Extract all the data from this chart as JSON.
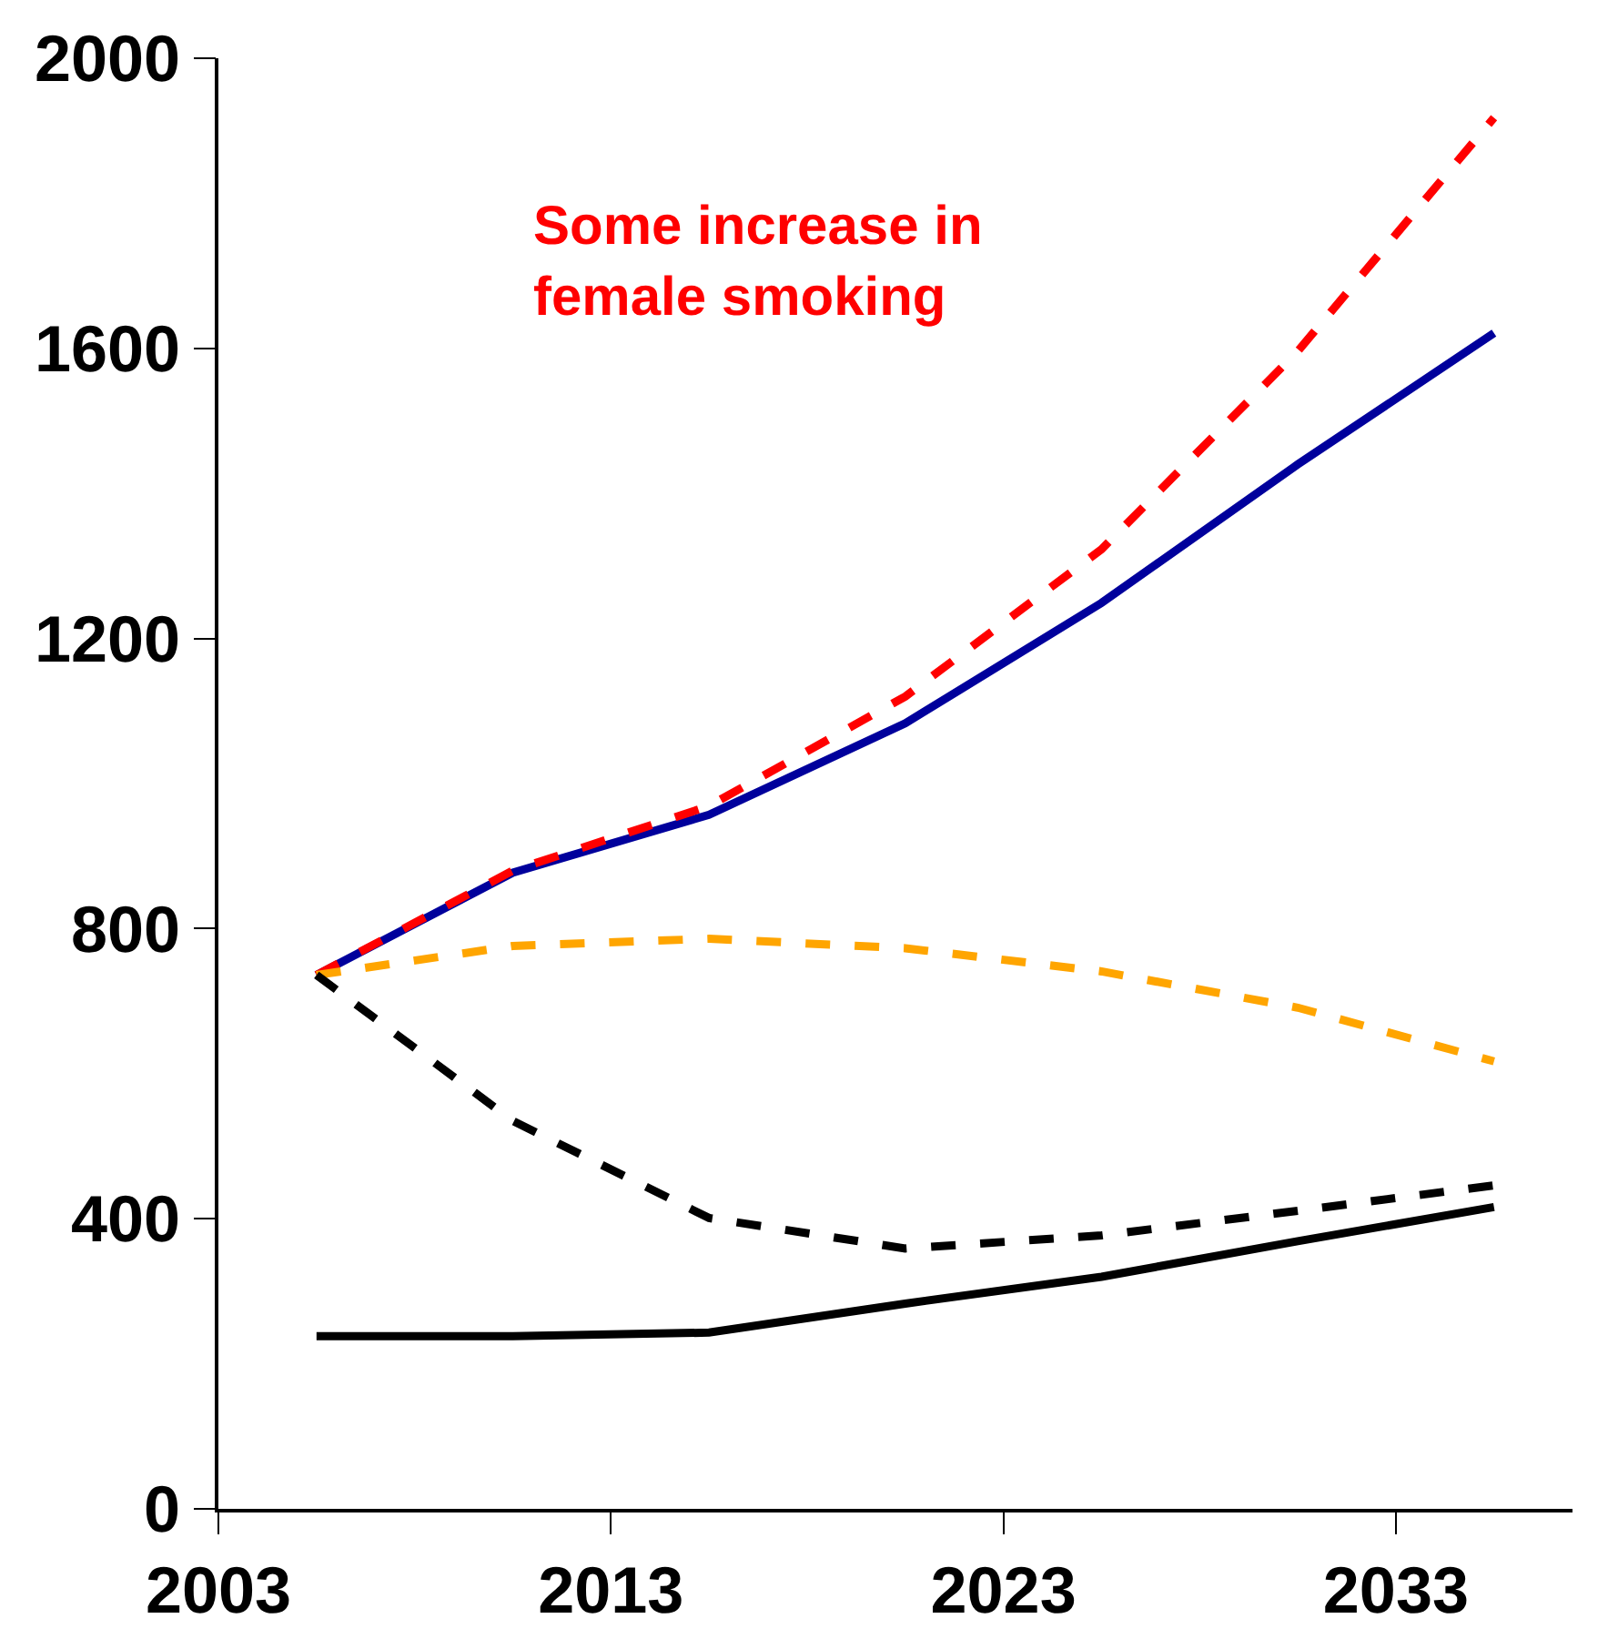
{
  "chart_data": {
    "type": "line",
    "x": [
      2005.5,
      2010.5,
      2015.5,
      2020.5,
      2025.5,
      2030.5,
      2035.5
    ],
    "series": [
      {
        "color": "#00009c",
        "line_style": "solid",
        "values": [
          736,
          877,
          957,
          1083,
          1249,
          1440,
          1621
        ]
      },
      {
        "color": "#ff0000",
        "line_style": "dashed",
        "values": [
          736,
          880,
          969,
          1120,
          1323,
          1596,
          1918
        ]
      },
      {
        "color": "#ffa500",
        "line_style": "dashed",
        "values": [
          736,
          776,
          786,
          773,
          741,
          691,
          617
        ]
      },
      {
        "color": "#000000",
        "line_style": "dashed",
        "values": [
          736,
          535,
          401,
          359,
          377,
          411,
          446
        ]
      },
      {
        "color": "#000000",
        "line_style": "solid",
        "values": [
          238,
          238,
          243,
          283,
          320,
          369,
          416
        ]
      }
    ],
    "annotations": [
      "Some increase in\nfemale smoking"
    ],
    "xlim": [
      2003,
      2037.5
    ],
    "xticks": [
      2003,
      2013,
      2023,
      2033
    ],
    "ylim": [
      0,
      2000
    ],
    "yticks": [
      0,
      400,
      800,
      1200,
      1600,
      2000
    ],
    "marker": "none"
  }
}
